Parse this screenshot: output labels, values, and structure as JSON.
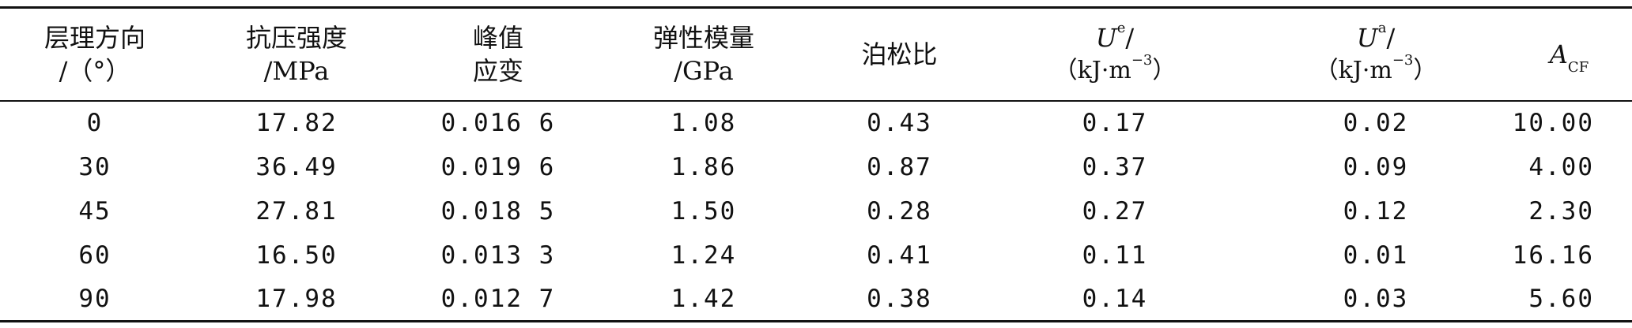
{
  "table": {
    "headers": [
      {
        "key": "bedding",
        "line1": "层理方向",
        "line2": "/（°）"
      },
      {
        "key": "strength",
        "line1": "抗压强度",
        "line2": "/MPa"
      },
      {
        "key": "peak_strain",
        "line1": "峰值",
        "line2": "应变"
      },
      {
        "key": "modulus",
        "line1": "弹性模量",
        "line2": "/GPa"
      },
      {
        "key": "poisson",
        "line1": "泊松比",
        "line2": ""
      },
      {
        "key": "ue",
        "symbol": "U",
        "sup": "e",
        "suffix": "/",
        "unit": "（kJ·m",
        "unit_sup": "−3",
        "unit_end": "）"
      },
      {
        "key": "ua",
        "symbol": "U",
        "sup": "a",
        "suffix": "/",
        "unit": "（kJ·m",
        "unit_sup": "−3",
        "unit_end": "）"
      },
      {
        "key": "acf",
        "symbol": "A",
        "sub": "CF"
      }
    ],
    "rows": [
      [
        "0",
        "17.82",
        "0.016 6",
        "1.08",
        "0.43",
        "0.17",
        "0.02",
        "10.00"
      ],
      [
        "30",
        "36.49",
        "0.019 6",
        "1.86",
        "0.87",
        "0.37",
        "0.09",
        "4.00"
      ],
      [
        "45",
        "27.81",
        "0.018 5",
        "1.50",
        "0.28",
        "0.27",
        "0.12",
        "2.30"
      ],
      [
        "60",
        "16.50",
        "0.013 3",
        "1.24",
        "0.41",
        "0.11",
        "0.01",
        "16.16"
      ],
      [
        "90",
        "17.98",
        "0.012 7",
        "1.42",
        "0.38",
        "0.14",
        "0.03",
        "5.60"
      ]
    ]
  }
}
